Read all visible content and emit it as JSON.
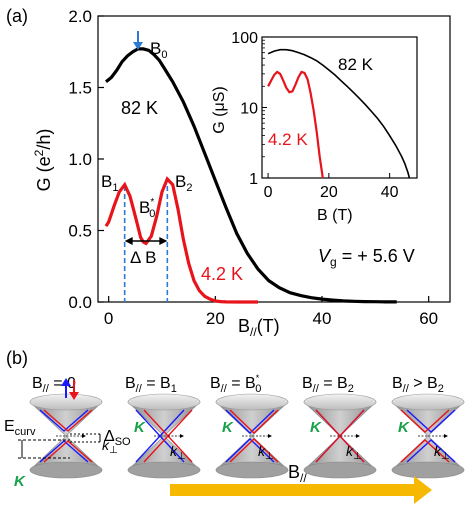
{
  "panel_a": {
    "label": "(a)",
    "chart_data": [
      {
        "type": "line",
        "title": "",
        "xlabel": "B//(T)",
        "ylabel": "G (e²/h)",
        "xlim": [
          -2,
          64
        ],
        "ylim": [
          0,
          2.0
        ],
        "xticks": [
          0,
          20,
          40,
          60
        ],
        "yticks": [
          0.0,
          0.5,
          1.0,
          1.5,
          2.0
        ],
        "ytick_labels": [
          "0.0",
          "0.5",
          "1.0",
          "1.5",
          "2.0"
        ],
        "series": [
          {
            "name": "82 K",
            "color": "#000000",
            "x": [
              -0.5,
              0.5,
              1.5,
              2.5,
              3.5,
              4.5,
              5.5,
              6.5,
              7.5,
              8.5,
              9.5,
              10.5,
              12,
              14,
              16,
              18,
              20,
              22,
              24,
              26,
              28,
              30,
              32,
              34,
              36,
              38,
              40,
              42,
              44,
              46,
              48,
              50,
              52,
              54
            ],
            "y": [
              1.54,
              1.57,
              1.62,
              1.68,
              1.72,
              1.75,
              1.77,
              1.77,
              1.76,
              1.73,
              1.69,
              1.63,
              1.54,
              1.4,
              1.23,
              1.04,
              0.85,
              0.66,
              0.48,
              0.34,
              0.23,
              0.15,
              0.1,
              0.065,
              0.045,
              0.03,
              0.02,
              0.013,
              0.008,
              0.005,
              0.003,
              0.002,
              0.001,
              0.0005
            ]
          },
          {
            "name": "4.2 K",
            "color": "#e8141c",
            "x": [
              -0.5,
              0,
              1,
              2,
              3,
              4,
              5,
              6,
              6.5,
              7,
              8,
              9,
              10,
              11,
              12,
              13,
              14,
              15,
              16,
              17,
              18,
              19,
              20,
              21,
              22,
              24,
              26,
              28
            ],
            "y": [
              0.53,
              0.56,
              0.67,
              0.77,
              0.82,
              0.74,
              0.6,
              0.45,
              0.42,
              0.41,
              0.46,
              0.6,
              0.77,
              0.86,
              0.82,
              0.65,
              0.44,
              0.27,
              0.15,
              0.08,
              0.04,
              0.02,
              0.008,
              0.003,
              0.001,
              0.0,
              0.0,
              0.0
            ]
          }
        ],
        "annotations": {
          "b0_label": "B",
          "b0_sub": "0",
          "b0_x": 5.5,
          "b1_label": "B",
          "b1_sub": "1",
          "b1_x": 3,
          "b2_label": "B",
          "b2_sub": "2",
          "b2_x": 11,
          "b0star_label": "B",
          "b0star_sub": "0",
          "b0star_sup": "*",
          "delta_b": "Δ B",
          "label_82k": "82 K",
          "label_4k": "4.2 K",
          "vg_label": "V",
          "vg_sub": "g",
          "vg_value": " = + 5.6 V"
        }
      },
      {
        "type": "line",
        "title": "",
        "xlabel": "B (T)",
        "ylabel": "G (μS)",
        "yscale": "log",
        "xlim": [
          -2,
          49
        ],
        "ylim": [
          1,
          100
        ],
        "xticks": [
          0,
          20,
          40
        ],
        "yticks": [
          1,
          10,
          100
        ],
        "ytick_labels": [
          "1",
          "10",
          "100"
        ],
        "series": [
          {
            "name": "82 K",
            "color": "#000000",
            "x": [
              0,
              2,
              4,
              6,
              8,
              10,
              12,
              14,
              16,
              18,
              20,
              22,
              24,
              26,
              28,
              30,
              32,
              34,
              36,
              38,
              40,
              42,
              44,
              45,
              46,
              46.5
            ],
            "y": [
              58,
              63,
              66,
              66,
              64,
              60,
              56,
              51,
              46,
              40,
              34,
              29,
              24,
              20,
              16.5,
              13.5,
              11,
              8.8,
              7,
              5.4,
              4,
              2.9,
              2.0,
              1.6,
              1.2,
              1.0
            ]
          },
          {
            "name": "4.2 K",
            "color": "#e8141c",
            "x": [
              0,
              1,
              2,
              3,
              4,
              5,
              6,
              7,
              8,
              9,
              10,
              11,
              12,
              13,
              14,
              15,
              16,
              16.5,
              17,
              17.5,
              18
            ],
            "y": [
              20,
              24,
              29,
              32,
              30,
              24,
              19,
              16.5,
              17,
              21,
              27,
              32,
              31,
              25,
              16,
              9,
              4.5,
              3,
              2,
              1.4,
              1.0
            ]
          }
        ],
        "annotations": {
          "label_82k": "82 K",
          "label_4k": "4.2 K"
        }
      }
    ]
  },
  "panel_b": {
    "label": "(b)",
    "cone_titles": [
      {
        "main": "B",
        "sub": "//",
        "rel": " = 0"
      },
      {
        "main": "B",
        "sub": "//",
        "rel": " = B",
        "rel_sub": "1"
      },
      {
        "main": "B",
        "sub": "//",
        "rel": " = B",
        "rel_sub": "0",
        "rel_sup": "*"
      },
      {
        "main": "B",
        "sub": "//",
        "rel": " = B",
        "rel_sub": "2"
      },
      {
        "main": "B",
        "sub": "//",
        "rel": " > B",
        "rel_sub": "2"
      }
    ],
    "ecurv": "E",
    "ecurv_sub": "curv",
    "delta_so": "Δ",
    "delta_so_sub": "SO",
    "k_label": "K",
    "k_perp": "k",
    "k_perp_sub": "⊥",
    "arrow_label": "B",
    "arrow_label_sub": "//",
    "colors": {
      "cone": "#a6a6a6",
      "blue": "#1a1aff",
      "red": "#e8141c",
      "k_green": "#19a04a",
      "arrow": "#f6b800",
      "dash_blue": "#2b7bd6"
    }
  }
}
